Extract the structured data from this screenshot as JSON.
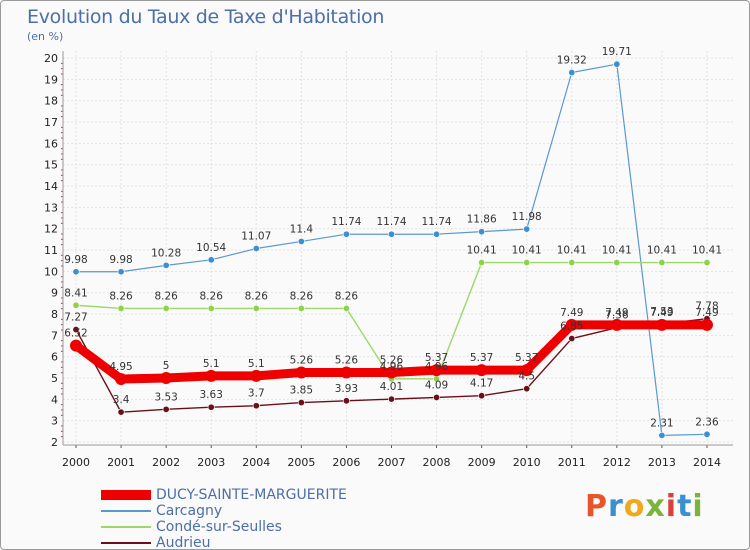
{
  "header": {
    "title": "Evolution du Taux de Taxe d'Habitation",
    "subtitle": "(en %)"
  },
  "logo": {
    "letters": [
      "P",
      "r",
      "o",
      "x",
      "i",
      "t",
      "i"
    ],
    "colors": [
      "#e8552c",
      "#3a8fd1",
      "#f0a81c",
      "#7bb33b",
      "#d8423a",
      "#3a8fd1",
      "#7bb33b"
    ]
  },
  "chart_data": {
    "type": "line",
    "title": "Evolution du Taux de Taxe d'Habitation",
    "subtitle": "(en %)",
    "xlabel": "",
    "ylabel": "",
    "x": [
      "2000",
      "2001",
      "2002",
      "2003",
      "2004",
      "2005",
      "2006",
      "2007",
      "2008",
      "2009",
      "2010",
      "2011",
      "2012",
      "2013",
      "2014"
    ],
    "y_ticks": [
      "2",
      "3",
      "4",
      "5",
      "6",
      "7",
      "8",
      "9",
      "10",
      "11",
      "12",
      "13",
      "14",
      "15",
      "16",
      "17",
      "18",
      "19",
      "20"
    ],
    "ylim": [
      2,
      20
    ],
    "grid": true,
    "legend": "bottom-left",
    "series": [
      {
        "name": "DUCY-SAINTE-MARGUERITE",
        "color": "#ee0000",
        "values": [
          6.52,
          4.95,
          5,
          5.1,
          5.1,
          5.26,
          5.26,
          5.26,
          5.37,
          5.37,
          5.37,
          7.49,
          7.49,
          7.49,
          7.49
        ],
        "labels": [
          "6.52",
          "4.95",
          "5",
          "5.1",
          "5.1",
          "5.26",
          "5.26",
          "5.26",
          "5.37",
          "5.37",
          "5.37",
          "7.49",
          "7.49",
          "7.49",
          "7.49"
        ]
      },
      {
        "name": "Carcagny",
        "color": "#3b8fd4",
        "values": [
          9.98,
          9.98,
          10.28,
          10.54,
          11.07,
          11.4,
          11.74,
          11.74,
          11.74,
          11.86,
          11.98,
          19.32,
          19.71,
          2.31,
          2.36
        ],
        "labels": [
          "9.98",
          "9.98",
          "10.28",
          "10.54",
          "11.07",
          "11.4",
          "11.74",
          "11.74",
          "11.74",
          "11.86",
          "11.98",
          "19.32",
          "19.71",
          "2.31",
          "2.36"
        ]
      },
      {
        "name": "Condé-sur-Seulles",
        "color": "#8fd14f",
        "values": [
          8.41,
          8.26,
          8.26,
          8.26,
          8.26,
          8.26,
          8.26,
          4.96,
          4.96,
          10.41,
          10.41,
          10.41,
          10.41,
          10.41,
          10.41
        ],
        "labels": [
          "8.41",
          "8.26",
          "8.26",
          "8.26",
          "8.26",
          "8.26",
          "8.26",
          "4.96",
          "4.96",
          "10.41",
          "10.41",
          "10.41",
          "10.41",
          "10.41",
          "10.41"
        ]
      },
      {
        "name": "Audrieu",
        "color": "#6b0f1a",
        "values": [
          7.27,
          3.4,
          3.53,
          3.63,
          3.7,
          3.85,
          3.93,
          4.01,
          4.09,
          4.17,
          4.5,
          6.85,
          7.36,
          7.53,
          7.78
        ],
        "labels": [
          "7.27",
          "3.4",
          "3.53",
          "3.63",
          "3.7",
          "3.85",
          "3.93",
          "4.01",
          "4.09",
          "4.17",
          "4.5",
          "6.85",
          "7.36",
          "7.53",
          "7.78"
        ]
      }
    ]
  }
}
